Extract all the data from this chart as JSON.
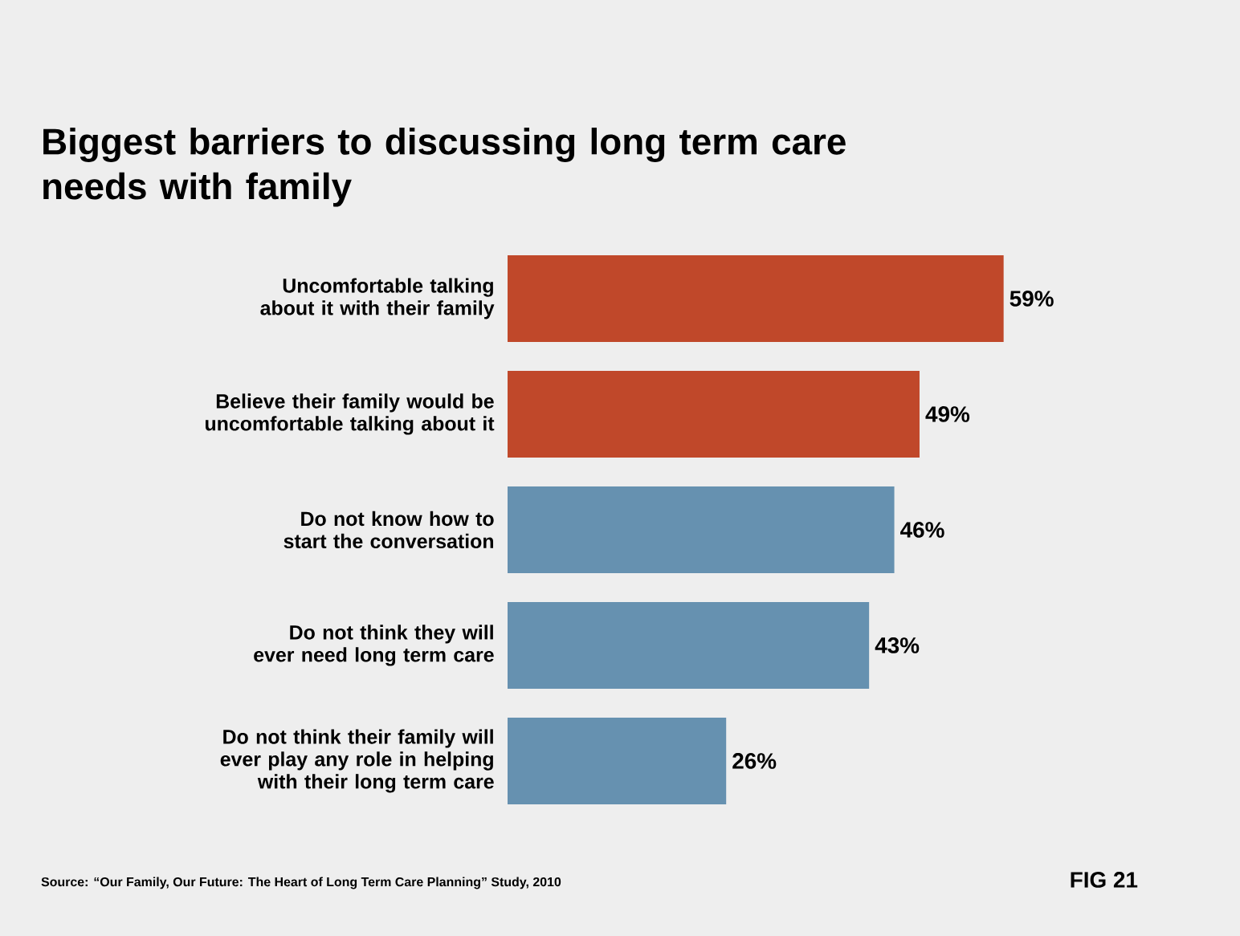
{
  "chart_data": {
    "type": "bar",
    "orientation": "horizontal",
    "title": "Biggest barriers to discussing long term care needs with family",
    "categories": [
      "Uncomfortable talking about it with their family",
      "Believe their family would be uncomfortable talking about it",
      "Do not know how to start the conversation",
      "Do not think they will ever need long term care",
      "Do not think their family will ever play any role in helping with their long term care"
    ],
    "values": [
      59,
      49,
      46,
      43,
      26
    ],
    "value_labels": [
      "59%",
      "49%",
      "46%",
      "43%",
      "26%"
    ],
    "colors": [
      "#c0482a",
      "#c0482a",
      "#6691b0",
      "#6691b0",
      "#6691b0"
    ],
    "annotations": [
      "Source: “Our Family, Our Future: The Heart of Long Term Care Planning” Study, 2010",
      "FIG 21"
    ]
  }
}
